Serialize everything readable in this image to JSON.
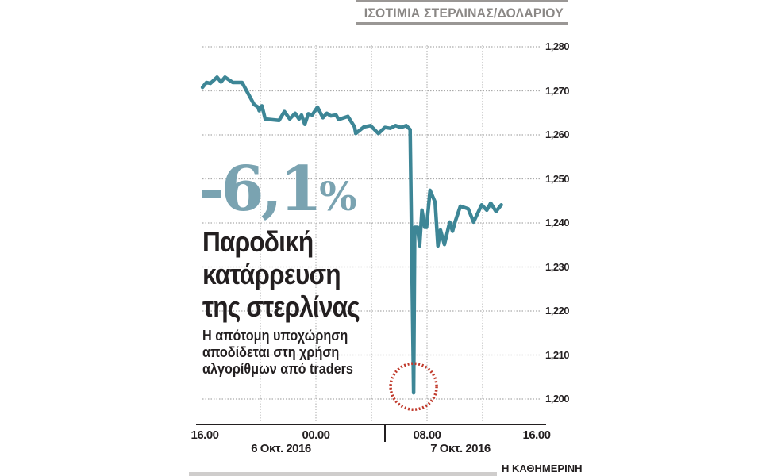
{
  "chart_data": {
    "type": "line",
    "title": "ΙΣΟΤΙΜΙΑ ΣΤΕΡΛΙΝΑΣ/ΔΟΛΑΡΙΟΥ",
    "ylim": [
      1.2,
      1.28
    ],
    "yticks": [
      "1,280",
      "1,270",
      "1,260",
      "1,250",
      "1,240",
      "1,230",
      "1,220",
      "1,210",
      "1,200"
    ],
    "ytick_values": [
      1.28,
      1.27,
      1.26,
      1.25,
      1.24,
      1.23,
      1.22,
      1.21,
      1.2
    ],
    "xlim": [
      "2016-10-06T16:00",
      "2016-10-07T16:00"
    ],
    "xticks": [
      {
        "label": "16.00",
        "time": "2016-10-06T16:00"
      },
      {
        "label": "00.00",
        "time": "2016-10-07T00:00"
      },
      {
        "label": "08.00",
        "time": "2016-10-07T08:00"
      },
      {
        "label": "16.00",
        "time": "2016-10-07T16:00"
      }
    ],
    "date_labels": [
      "6 Οκτ. 2016",
      "7 Οκτ. 2016"
    ],
    "grid": true,
    "line_color": "#3d8696",
    "highlight_color": "#c0392b",
    "series": [
      {
        "x": [
          "2016-10-06T15:50",
          "2016-10-06T16:07",
          "2016-10-06T16:24",
          "2016-10-06T16:53",
          "2016-10-06T17:10",
          "2016-10-06T17:27",
          "2016-10-06T18:01",
          "2016-10-06T18:41",
          "2016-10-06T19:33",
          "2016-10-06T19:50",
          "2016-10-06T19:55",
          "2016-10-06T20:07",
          "2016-10-06T20:21",
          "2016-10-06T21:21",
          "2016-10-06T21:44",
          "2016-10-06T22:07",
          "2016-10-06T22:30",
          "2016-10-06T22:47",
          "2016-10-06T22:58",
          "2016-10-06T23:12",
          "2016-10-06T23:27",
          "2016-10-06T23:44",
          "2016-10-07T00:07",
          "2016-10-07T00:30",
          "2016-10-07T00:47",
          "2016-10-07T01:04",
          "2016-10-07T01:27",
          "2016-10-07T01:38",
          "2016-10-07T02:18",
          "2016-10-07T02:47",
          "2016-10-07T02:52",
          "2016-10-07T03:27",
          "2016-10-07T03:56",
          "2016-10-07T04:30",
          "2016-10-07T04:58",
          "2016-10-07T05:21",
          "2016-10-07T05:44",
          "2016-10-07T06:07",
          "2016-10-07T06:30",
          "2016-10-07T06:47",
          "2016-10-07T07:02",
          "2016-10-07T07:07",
          "2016-10-07T07:19",
          "2016-10-07T07:28",
          "2016-10-07T07:38",
          "2016-10-07T07:50",
          "2016-10-07T07:58",
          "2016-10-07T08:13",
          "2016-10-07T08:35",
          "2016-10-07T08:47",
          "2016-10-07T08:58",
          "2016-10-07T09:15",
          "2016-10-07T09:38",
          "2016-10-07T09:50",
          "2016-10-07T10:01",
          "2016-10-07T10:24",
          "2016-10-07T10:58",
          "2016-10-07T11:21",
          "2016-10-07T11:56",
          "2016-10-07T12:18",
          "2016-10-07T12:35",
          "2016-10-07T12:58",
          "2016-10-07T13:21"
        ],
        "y": [
          1.2708,
          1.2719,
          1.2717,
          1.2731,
          1.272,
          1.2731,
          1.2719,
          1.2719,
          1.2669,
          1.2663,
          1.2655,
          1.2666,
          1.2636,
          1.2633,
          1.2653,
          1.2636,
          1.2649,
          1.2636,
          1.2645,
          1.2624,
          1.2648,
          1.2645,
          1.2663,
          1.2639,
          1.2649,
          1.2643,
          1.2645,
          1.2635,
          1.2642,
          1.2618,
          1.2603,
          1.2618,
          1.2621,
          1.2603,
          1.2617,
          1.2615,
          1.2621,
          1.2617,
          1.2621,
          1.2612,
          1.2014,
          1.239,
          1.239,
          1.2348,
          1.2429,
          1.239,
          1.239,
          1.2474,
          1.2447,
          1.2348,
          1.2384,
          1.2351,
          1.2402,
          1.2381,
          1.2402,
          1.2438,
          1.2432,
          1.2402,
          1.2441,
          1.2429,
          1.2445,
          1.2426,
          1.2441
        ]
      }
    ],
    "annotations": {
      "highlight": {
        "label": "",
        "time": "2016-10-07T07:02",
        "value": 1.2014
      }
    }
  },
  "headline": {
    "change": "-6,1",
    "percent": "%",
    "lines": [
      "Παροδική",
      "κατάρρευση",
      "της στερλίνας"
    ],
    "sub_lines": [
      "Η απότομη υποχώρηση",
      "αποδίδεται στη χρήση",
      "αλγορίθμων από traders"
    ]
  },
  "footer": {
    "source": "Η ΚΑΘΗΜΕΡΙΝΗ"
  }
}
